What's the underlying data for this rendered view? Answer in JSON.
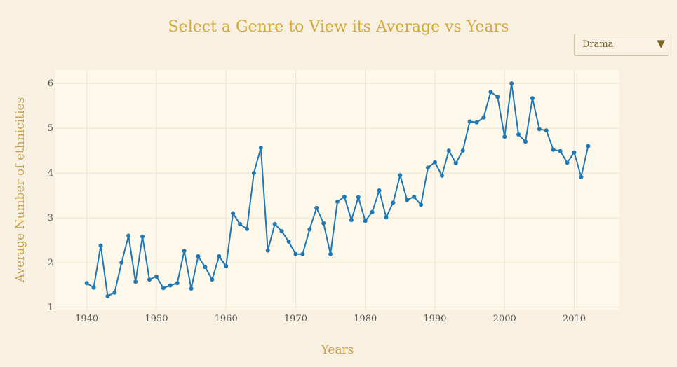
{
  "header": {
    "title": "Select a Genre to View its Average vs Years"
  },
  "dropdown": {
    "selected": "Drama",
    "caret_icon": "triangle-down-icon"
  },
  "colors": {
    "background": "#f8f1e1",
    "plot_background": "#fdf8ea",
    "line": "#1f77b4",
    "title": "#d4a93a"
  },
  "chart_data": {
    "type": "line",
    "title": "Select a Genre to View its Average vs Years",
    "xlabel": "Years",
    "ylabel": "Average Number of ethnicities",
    "xlim": [
      1935.5,
      2016.5
    ],
    "ylim": [
      0.95,
      6.3
    ],
    "x_ticks": [
      1940,
      1950,
      1960,
      1970,
      1980,
      1990,
      2000,
      2010
    ],
    "y_ticks": [
      1,
      2,
      3,
      4,
      5,
      6
    ],
    "grid": true,
    "series": [
      {
        "x": [
          1940,
          1941,
          1942,
          1943,
          1944,
          1945,
          1946,
          1947,
          1948,
          1949,
          1950,
          1951,
          1952,
          1953,
          1954,
          1955,
          1956,
          1957,
          1958,
          1959,
          1960,
          1961,
          1962,
          1963,
          1964,
          1965,
          1966,
          1967,
          1968,
          1969,
          1970,
          1971,
          1972,
          1973,
          1974,
          1975,
          1976,
          1977,
          1978,
          1979,
          1980,
          1981,
          1982,
          1983,
          1984,
          1985,
          1986,
          1987,
          1988,
          1989,
          1990,
          1991,
          1992,
          1993,
          1994,
          1995,
          1996,
          1997,
          1998,
          1999,
          2000,
          2001,
          2002,
          2003,
          2004,
          2005,
          2006,
          2007,
          2008,
          2009,
          2010,
          2011,
          2012
        ],
        "y": [
          1.54,
          1.44,
          2.38,
          1.25,
          1.33,
          2.0,
          2.6,
          1.57,
          2.58,
          1.62,
          1.69,
          1.43,
          1.49,
          1.54,
          2.26,
          1.42,
          2.14,
          1.9,
          1.62,
          2.14,
          1.92,
          3.1,
          2.86,
          2.75,
          4.0,
          4.56,
          2.27,
          2.86,
          2.7,
          2.47,
          2.19,
          2.19,
          2.74,
          3.22,
          2.88,
          2.19,
          3.36,
          3.47,
          2.95,
          3.46,
          2.93,
          3.13,
          3.61,
          3.01,
          3.34,
          3.95,
          3.4,
          3.47,
          3.29,
          4.12,
          4.24,
          3.94,
          4.5,
          4.22,
          4.5,
          5.15,
          5.13,
          5.24,
          5.81,
          5.7,
          4.81,
          6.0,
          4.86,
          4.7,
          5.67,
          4.98,
          4.95,
          4.52,
          4.49,
          4.23,
          4.46,
          3.91,
          4.6
        ]
      }
    ]
  }
}
